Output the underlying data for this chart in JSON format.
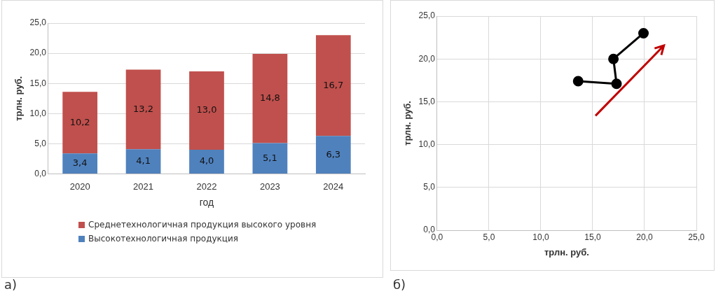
{
  "chart_data": [
    {
      "type": "bar",
      "stacked": true,
      "ylabel": "трлн. руб.",
      "xlabel": "год",
      "categories": [
        "2020",
        "2021",
        "2022",
        "2023",
        "2024"
      ],
      "series": [
        {
          "name": "Высокотехнологичная продукция",
          "color": "#4f81bd",
          "values": [
            3.4,
            4.1,
            4.0,
            5.1,
            6.3
          ],
          "value_labels": [
            "3,4",
            "4,1",
            "4,0",
            "5,1",
            "6,3"
          ]
        },
        {
          "name": "Среднетехнологичная продукция высокого уровня",
          "color": "#c0504d",
          "values": [
            10.2,
            13.2,
            13.0,
            14.8,
            16.7
          ],
          "value_labels": [
            "10,2",
            "13,2",
            "13,0",
            "14,8",
            "16,7"
          ]
        }
      ],
      "ylim": [
        0,
        25
      ],
      "yticks": [
        {
          "value": 0,
          "label": "0,0"
        },
        {
          "value": 5,
          "label": "5,0"
        },
        {
          "value": 10,
          "label": "10,0"
        },
        {
          "value": 15,
          "label": "15,0"
        },
        {
          "value": 20,
          "label": "20,0"
        },
        {
          "value": 25,
          "label": "25,0"
        }
      ],
      "grid": "y",
      "legend": "bottom",
      "annotations": [
        "а)"
      ]
    },
    {
      "type": "line",
      "xlabel": "трлн. руб.",
      "ylabel": "трлн. руб.",
      "series": [
        {
          "color": "#000000",
          "x": [
            13.6,
            17.3,
            17.0,
            19.9
          ],
          "values": [
            17.4,
            17.1,
            20.0,
            23.0
          ]
        }
      ],
      "xlim": [
        0,
        25
      ],
      "xticks": [
        {
          "value": 0,
          "label": "0,0"
        },
        {
          "value": 5,
          "label": "5,0"
        },
        {
          "value": 10,
          "label": "10,0"
        },
        {
          "value": 15,
          "label": "15,0"
        },
        {
          "value": 20,
          "label": "20,0"
        },
        {
          "value": 25,
          "label": "25,0"
        }
      ],
      "ylim": [
        0,
        25
      ],
      "yticks": [
        {
          "value": 0,
          "label": "0,0"
        },
        {
          "value": 5,
          "label": "5,0"
        },
        {
          "value": 10,
          "label": "10,0"
        },
        {
          "value": 15,
          "label": "15,0"
        },
        {
          "value": 20,
          "label": "20,0"
        },
        {
          "value": 25,
          "label": "25,0"
        }
      ],
      "grid": true,
      "marker": "circle",
      "line_style": "solid",
      "legend": false,
      "annotations": [
        "б)"
      ]
    }
  ]
}
